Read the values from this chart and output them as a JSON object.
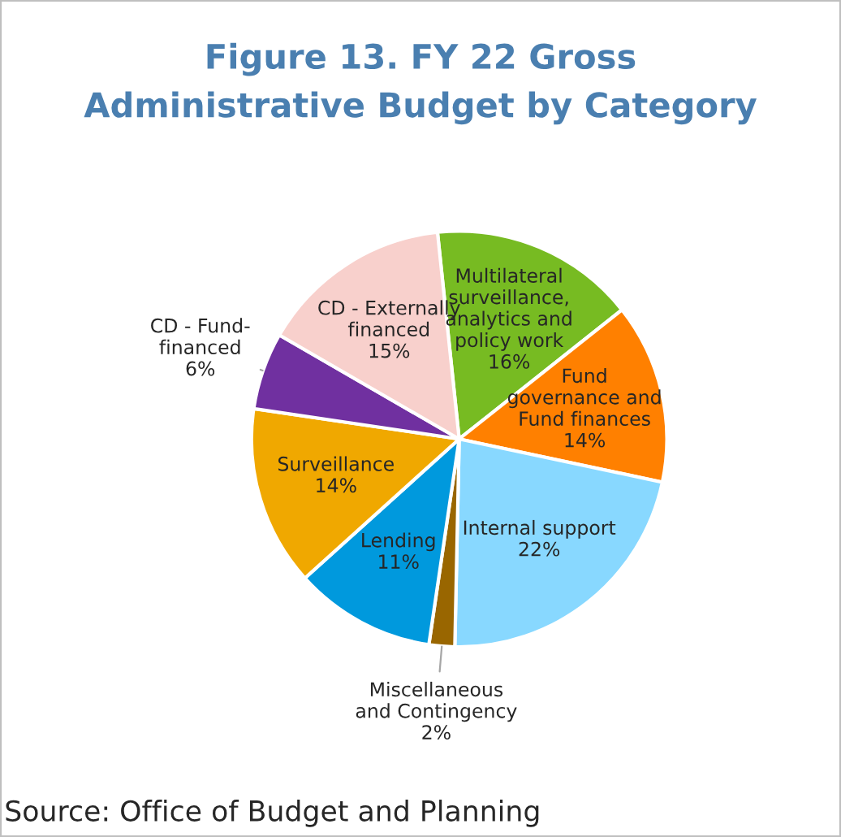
{
  "chart_data": {
    "type": "pie",
    "title": "Figure 13. FY 22 Gross\nAdministrative Budget by Category",
    "categories": [
      "Multilateral\nsurveillance,\nanalytics and\npolicy work",
      "Fund\ngovernance and\nFund finances",
      "Internal support",
      "Miscellaneous\nand Contingency",
      "Lending",
      "Surveillance",
      "CD - Fund-\nfinanced",
      "CD - Externally\nfinanced"
    ],
    "values": [
      16,
      14,
      22,
      2,
      11,
      14,
      6,
      15
    ],
    "colors": [
      "#77bb22",
      "#ff8000",
      "#88d8ff",
      "#996600",
      "#0099dd",
      "#f0a800",
      "#7030a0",
      "#f8d0cc"
    ],
    "value_labels": [
      "16%",
      "14%",
      "22%",
      "2%",
      "11%",
      "14%",
      "6%",
      "15%"
    ],
    "legend": false,
    "annotations": [
      "Source: Office of Budget and Planning"
    ]
  }
}
